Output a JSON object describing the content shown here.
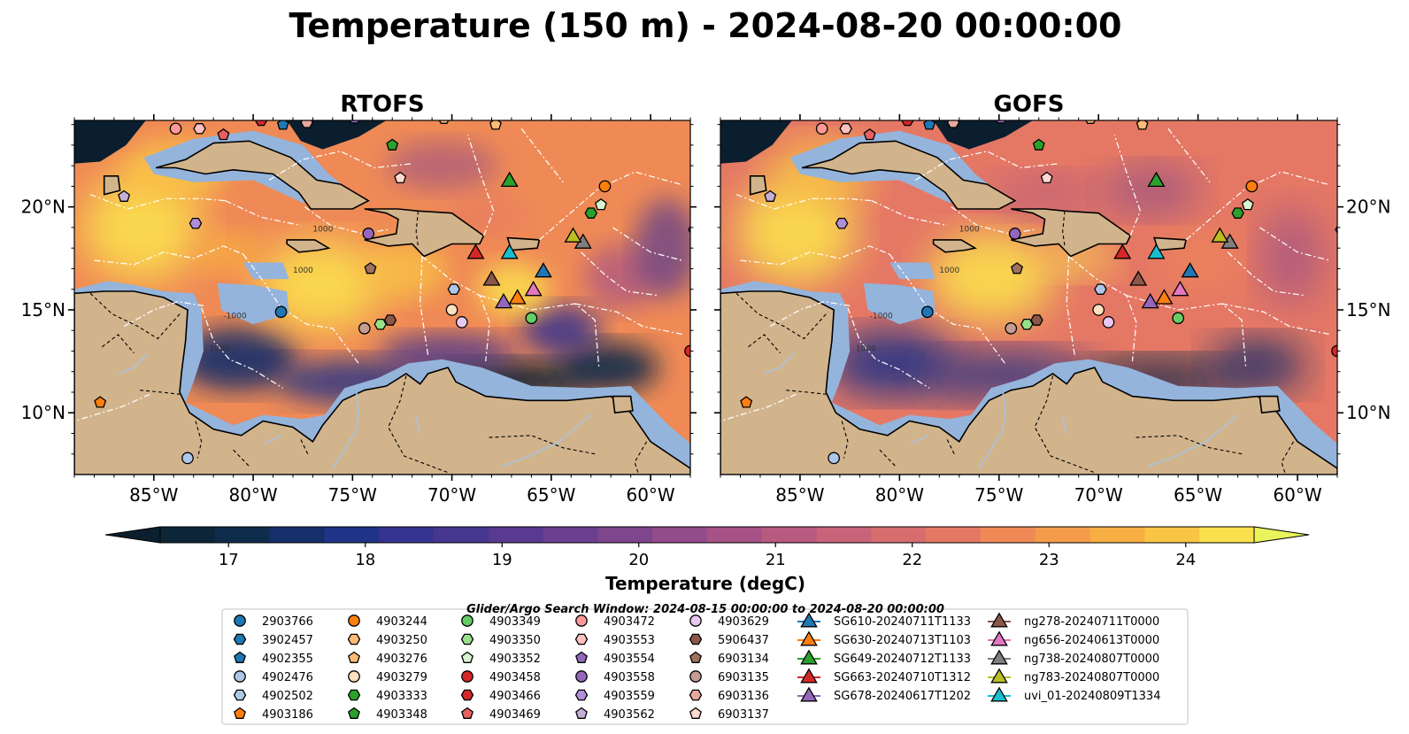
{
  "title": "Temperature (150 m) - 2024-08-20 00:00:00",
  "panels": [
    {
      "title": "RTOFS"
    },
    {
      "title": "GOFS"
    }
  ],
  "map": {
    "lon_range": [
      -89,
      -58
    ],
    "lat_range": [
      7,
      24.2
    ],
    "lon_ticks": [
      {
        "value": -85,
        "label": "85°W"
      },
      {
        "value": -80,
        "label": "80°W"
      },
      {
        "value": -75,
        "label": "75°W"
      },
      {
        "value": -70,
        "label": "70°W"
      },
      {
        "value": -65,
        "label": "65°W"
      },
      {
        "value": -60,
        "label": "60°W"
      }
    ],
    "lat_ticks": [
      {
        "value": 20,
        "label": "20°N"
      },
      {
        "value": 15,
        "label": "15°N"
      },
      {
        "value": 10,
        "label": "10°N"
      }
    ],
    "contour_labels": [
      "1000",
      "1000",
      "-1000",
      "1000"
    ]
  },
  "colors": {
    "land": "#d2b48c",
    "shelf": "#94b4dc",
    "deep": "#0b1e2e",
    "eez_line": "#ffffff",
    "border_line": "#000000"
  },
  "colorbar": {
    "label": "Temperature (degC)",
    "min": 16.5,
    "max": 24.5,
    "step": 0.5,
    "ticks": [
      {
        "value": 17,
        "label": "17"
      },
      {
        "value": 18,
        "label": "18"
      },
      {
        "value": 19,
        "label": "19"
      },
      {
        "value": 20,
        "label": "20"
      },
      {
        "value": 21,
        "label": "21"
      },
      {
        "value": 22,
        "label": "22"
      },
      {
        "value": 23,
        "label": "23"
      },
      {
        "value": 24,
        "label": "24"
      }
    ],
    "colors": [
      "#0c2637",
      "#0f2c4c",
      "#152f6a",
      "#1f3387",
      "#35338f",
      "#45368f",
      "#583a90",
      "#6b3f8f",
      "#7e468d",
      "#924c8a",
      "#a65286",
      "#b85a80",
      "#c9637a",
      "#d86d6f",
      "#e57865",
      "#ef8a56",
      "#f49b4b",
      "#f7ae43",
      "#f9c544",
      "#fbe04e"
    ],
    "under_color": "#0b1f2e",
    "over_color": "#e9f55a"
  },
  "legend": {
    "subtitle": "Glider/Argo Search Window: 2024-08-15 00:00:00 to 2024-08-20 00:00:00",
    "argo": [
      {
        "name": "2903766",
        "marker": "circle",
        "color": "#1f77b4"
      },
      {
        "name": "3902457",
        "marker": "hexagon",
        "color": "#1f77b4"
      },
      {
        "name": "4902355",
        "marker": "pentagon",
        "color": "#1f77b4"
      },
      {
        "name": "4902476",
        "marker": "circle",
        "color": "#aec7e8"
      },
      {
        "name": "4902502",
        "marker": "hexagon",
        "color": "#aec7e8"
      },
      {
        "name": "4903186",
        "marker": "pentagon",
        "color": "#ff7f0e"
      },
      {
        "name": "4903244",
        "marker": "circle",
        "color": "#ff7f0e"
      },
      {
        "name": "4903250",
        "marker": "hexagon",
        "color": "#ffbb78"
      },
      {
        "name": "4903276",
        "marker": "pentagon",
        "color": "#ffbb78"
      },
      {
        "name": "4903279",
        "marker": "circle",
        "color": "#ffe0c0"
      },
      {
        "name": "4903333",
        "marker": "hexagon",
        "color": "#2ca02c"
      },
      {
        "name": "4903348",
        "marker": "pentagon",
        "color": "#2ca02c"
      },
      {
        "name": "4903349",
        "marker": "circle",
        "color": "#66cc66"
      },
      {
        "name": "4903350",
        "marker": "hexagon",
        "color": "#98df8a"
      },
      {
        "name": "4903352",
        "marker": "pentagon",
        "color": "#d8f5d0"
      },
      {
        "name": "4903458",
        "marker": "circle",
        "color": "#d62728"
      },
      {
        "name": "4903466",
        "marker": "hexagon",
        "color": "#d62728"
      },
      {
        "name": "4903469",
        "marker": "pentagon",
        "color": "#e86060"
      },
      {
        "name": "4903472",
        "marker": "circle",
        "color": "#ff9896"
      },
      {
        "name": "4903553",
        "marker": "hexagon",
        "color": "#ffc0c0"
      },
      {
        "name": "4903554",
        "marker": "pentagon",
        "color": "#9467bd"
      },
      {
        "name": "4903558",
        "marker": "circle",
        "color": "#9467bd"
      },
      {
        "name": "4903559",
        "marker": "hexagon",
        "color": "#b08fd8"
      },
      {
        "name": "4903562",
        "marker": "pentagon",
        "color": "#c5b0d5"
      },
      {
        "name": "4903629",
        "marker": "circle",
        "color": "#e8c8f0"
      },
      {
        "name": "5906437",
        "marker": "hexagon",
        "color": "#8c564b"
      },
      {
        "name": "6903134",
        "marker": "pentagon",
        "color": "#a0705e"
      },
      {
        "name": "6903135",
        "marker": "circle",
        "color": "#c49c94"
      },
      {
        "name": "6903136",
        "marker": "hexagon",
        "color": "#e8a8a0"
      },
      {
        "name": "6903137",
        "marker": "pentagon",
        "color": "#ffd8d0"
      }
    ],
    "gliders": [
      {
        "name": "SG610-20240711T1133",
        "color": "#1f77b4"
      },
      {
        "name": "SG630-20240713T1103",
        "color": "#ff7f0e"
      },
      {
        "name": "SG649-20240712T1133",
        "color": "#2ca02c"
      },
      {
        "name": "SG663-20240710T1312",
        "color": "#d62728"
      },
      {
        "name": "SG678-20240617T1202",
        "color": "#9467bd"
      },
      {
        "name": "ng278-20240711T0000",
        "color": "#8c564b"
      },
      {
        "name": "ng656-20240613T0000",
        "color": "#e377c2"
      },
      {
        "name": "ng738-20240807T0000",
        "color": "#7f7f7f"
      },
      {
        "name": "ng783-20240807T0000",
        "color": "#bcbd22"
      },
      {
        "name": "uvi_01-20240809T1334",
        "color": "#17becf"
      }
    ]
  },
  "observations": {
    "argo": [
      {
        "name": "2903766",
        "lon": -78.6,
        "lat": 14.9
      },
      {
        "name": "3902457",
        "lon": -57.8,
        "lat": 18.9
      },
      {
        "name": "4902355",
        "lon": -78.5,
        "lat": 24.0
      },
      {
        "name": "4902476",
        "lon": -83.3,
        "lat": 7.8
      },
      {
        "name": "4902502",
        "lon": -69.9,
        "lat": 16.0
      },
      {
        "name": "4903186",
        "lon": -87.7,
        "lat": 10.5
      },
      {
        "name": "4903244",
        "lon": -62.3,
        "lat": 21.0
      },
      {
        "name": "4903250",
        "lon": -70.4,
        "lat": 24.3
      },
      {
        "name": "4903276",
        "lon": -67.8,
        "lat": 24.0
      },
      {
        "name": "4903279",
        "lon": -70.0,
        "lat": 15.0
      },
      {
        "name": "4903333",
        "lon": -63.0,
        "lat": 19.7
      },
      {
        "name": "4903348",
        "lon": -73.0,
        "lat": 23.0
      },
      {
        "name": "4903349",
        "lon": -66.0,
        "lat": 14.6
      },
      {
        "name": "4903350",
        "lon": -73.6,
        "lat": 14.3
      },
      {
        "name": "4903352",
        "lon": -62.5,
        "lat": 20.1
      },
      {
        "name": "4903458",
        "lon": -58.0,
        "lat": 13.0
      },
      {
        "name": "4903466",
        "lon": -79.6,
        "lat": 24.2
      },
      {
        "name": "4903469",
        "lon": -81.5,
        "lat": 23.5
      },
      {
        "name": "4903472",
        "lon": -83.9,
        "lat": 23.8
      },
      {
        "name": "4903553",
        "lon": -82.7,
        "lat": 23.8
      },
      {
        "name": "4903554",
        "lon": -74.9,
        "lat": 24.3
      },
      {
        "name": "4903558",
        "lon": -74.2,
        "lat": 18.7
      },
      {
        "name": "4903559",
        "lon": -82.9,
        "lat": 19.2
      },
      {
        "name": "4903562",
        "lon": -86.5,
        "lat": 20.5
      },
      {
        "name": "4903629",
        "lon": -69.5,
        "lat": 14.4
      },
      {
        "name": "5906437",
        "lon": -73.1,
        "lat": 14.5
      },
      {
        "name": "6903134",
        "lon": -74.1,
        "lat": 17.0
      },
      {
        "name": "6903135",
        "lon": -74.4,
        "lat": 14.1
      },
      {
        "name": "6903136",
        "lon": -77.3,
        "lat": 24.1
      },
      {
        "name": "6903137",
        "lon": -72.6,
        "lat": 21.4
      }
    ],
    "gliders": [
      {
        "name": "SG610-20240711T1133",
        "lon": -65.4,
        "lat": 16.9
      },
      {
        "name": "SG630-20240713T1103",
        "lon": -66.7,
        "lat": 15.6
      },
      {
        "name": "SG649-20240712T1133",
        "lon": -67.1,
        "lat": 21.3
      },
      {
        "name": "SG663-20240710T1312",
        "lon": -68.8,
        "lat": 17.8
      },
      {
        "name": "SG678-20240617T1202",
        "lon": -67.4,
        "lat": 15.4
      },
      {
        "name": "ng278-20240711T0000",
        "lon": -68.0,
        "lat": 16.5
      },
      {
        "name": "ng656-20240613T0000",
        "lon": -65.9,
        "lat": 16.0
      },
      {
        "name": "ng738-20240807T0000",
        "lon": -63.4,
        "lat": 18.3
      },
      {
        "name": "ng783-20240807T0000",
        "lon": -63.9,
        "lat": 18.6
      },
      {
        "name": "uvi_01-20240809T1334",
        "lon": -67.1,
        "lat": 17.8
      }
    ]
  }
}
